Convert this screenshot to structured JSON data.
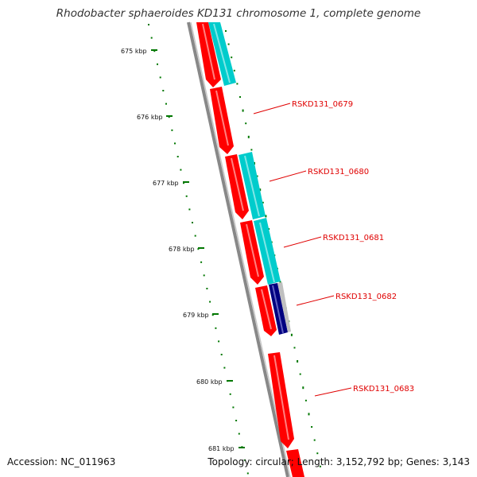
{
  "header": {
    "title": "Rhodobacter sphaeroides KD131 chromosome 1, complete genome"
  },
  "footer": {
    "accession": "Accession: NC_011963",
    "summary": "Topology: circular; Length: 3,152,792 bp; Genes: 3,143"
  },
  "colors": {
    "cds_forward": "#ff0000",
    "cds_highlight": "#00cccc",
    "cds_other": "#000080",
    "backbone": "#808080",
    "tick": "#007700",
    "gene_label": "#e00000"
  },
  "scale_labels": [
    "675 kbp",
    "676 kbp",
    "677 kbp",
    "678 kbp",
    "679 kbp",
    "680 kbp",
    "681 kbp"
  ],
  "gene_labels": [
    "RSKD131_0679",
    "RSKD131_0680",
    "RSKD131_0681",
    "RSKD131_0682",
    "RSKD131_0683"
  ]
}
